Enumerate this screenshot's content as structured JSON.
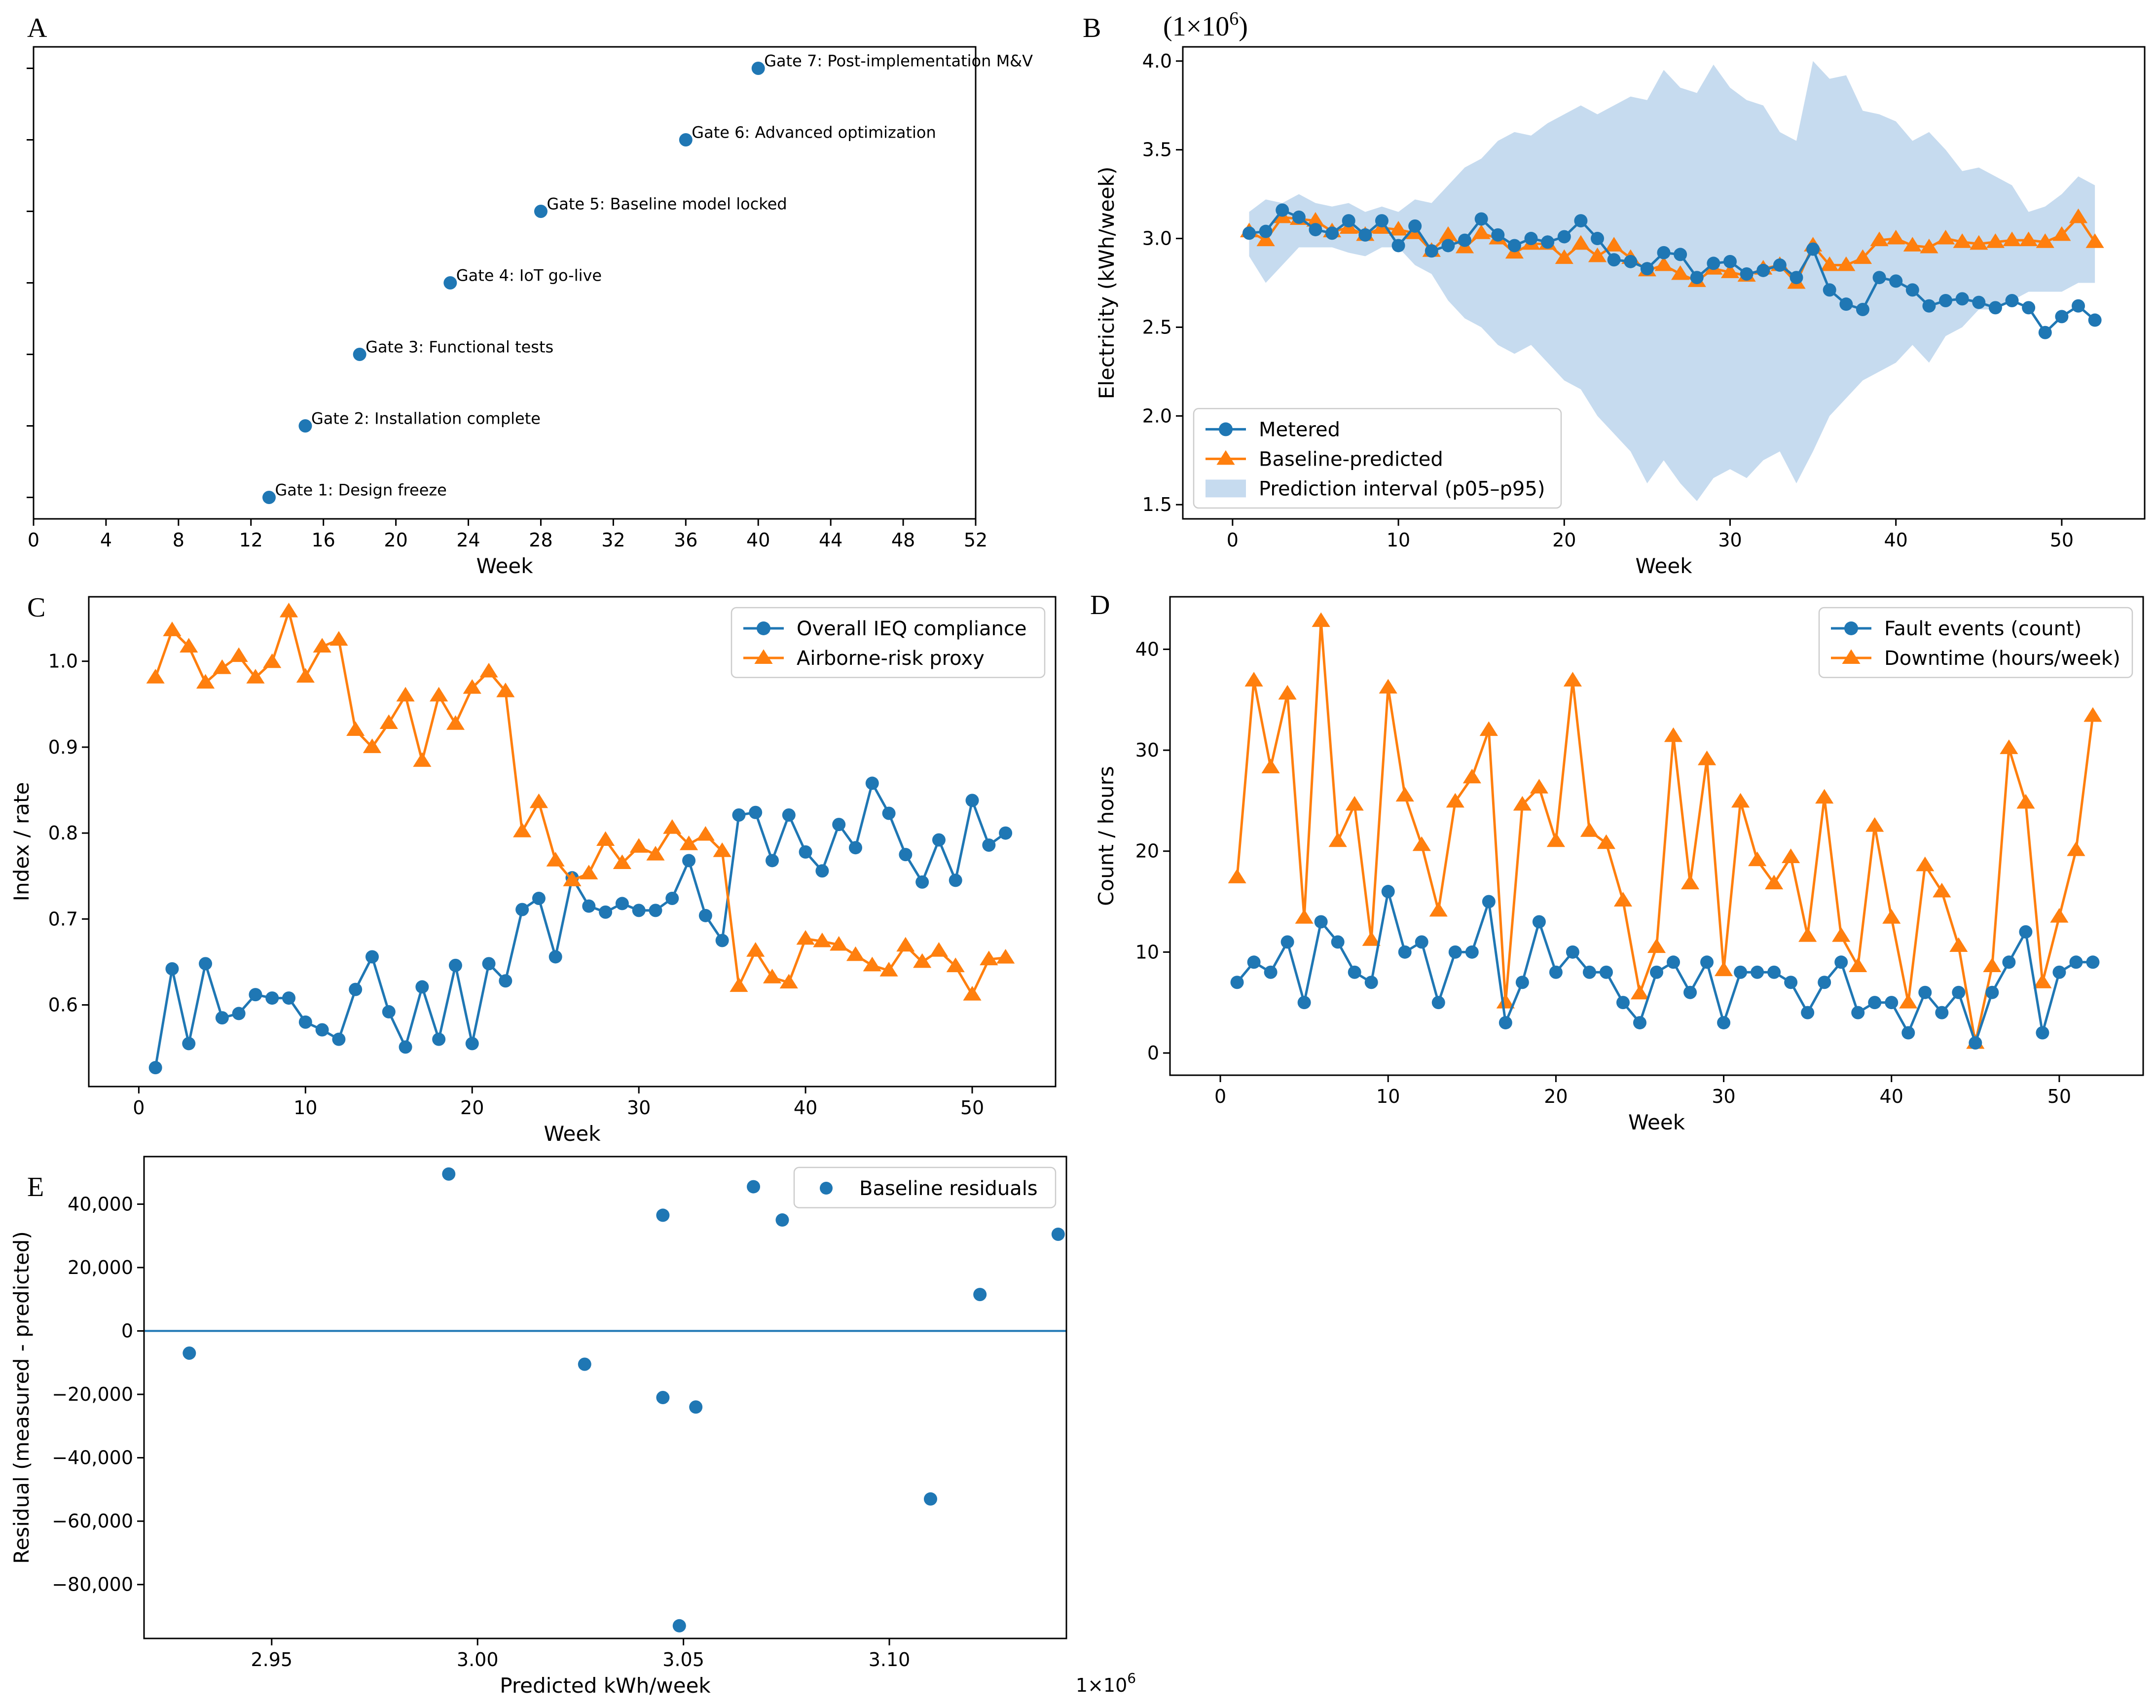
{
  "figure": {
    "panel_letters": [
      "A",
      "B",
      "C",
      "D",
      "E"
    ]
  },
  "colors": {
    "blue": "#1f77b4",
    "orange": "#ff7f0e",
    "band": "#c6dbef"
  },
  "chart_data": [
    {
      "id": "A",
      "type": "scatter",
      "title": "",
      "xlabel": "Week",
      "ylabel": "",
      "xlim": [
        0,
        52
      ],
      "xticks": [
        0,
        4,
        8,
        12,
        16,
        20,
        24,
        28,
        32,
        36,
        40,
        44,
        48,
        52
      ],
      "ylim": [
        0.7,
        7.3
      ],
      "points": [
        {
          "x": 13,
          "y": 1,
          "label": "Gate 1: Design freeze"
        },
        {
          "x": 15,
          "y": 2,
          "label": "Gate 2: Installation complete"
        },
        {
          "x": 18,
          "y": 3,
          "label": "Gate 3: Functional tests"
        },
        {
          "x": 23,
          "y": 4,
          "label": "Gate 4: IoT go-live"
        },
        {
          "x": 28,
          "y": 5,
          "label": "Gate 5: Baseline model locked"
        },
        {
          "x": 36,
          "y": 6,
          "label": "Gate 6: Advanced optimization"
        },
        {
          "x": 40,
          "y": 7,
          "label": "Gate 7: Post-implementation M&V"
        }
      ]
    },
    {
      "id": "B",
      "type": "line",
      "xlabel": "Week",
      "ylabel": "Electricity (kWh/week)",
      "scale_label": "(1×10",
      "scale_exp": "6",
      "scale_close": ")",
      "xlim": [
        -3,
        55
      ],
      "ylim": [
        1.42,
        4.08
      ],
      "xticks": [
        0,
        10,
        20,
        30,
        40,
        50
      ],
      "yticks": [
        "1.5",
        "2.0",
        "2.5",
        "3.0",
        "3.5",
        "4.0"
      ],
      "x": [
        1,
        2,
        3,
        4,
        5,
        6,
        7,
        8,
        9,
        10,
        11,
        12,
        13,
        14,
        15,
        16,
        17,
        18,
        19,
        20,
        21,
        22,
        23,
        24,
        25,
        26,
        27,
        28,
        29,
        30,
        31,
        32,
        33,
        34,
        35,
        36,
        37,
        38,
        39,
        40,
        41,
        42,
        43,
        44,
        45,
        46,
        47,
        48,
        49,
        50,
        51,
        52
      ],
      "series": [
        {
          "name": "Metered",
          "marker": "circle",
          "values": [
            3.03,
            3.04,
            3.16,
            3.12,
            3.05,
            3.03,
            3.1,
            3.02,
            3.1,
            2.96,
            3.07,
            2.93,
            2.96,
            2.99,
            3.11,
            3.02,
            2.96,
            3.0,
            2.98,
            3.01,
            3.1,
            3.0,
            2.88,
            2.87,
            2.83,
            2.92,
            2.91,
            2.78,
            2.86,
            2.87,
            2.8,
            2.82,
            2.85,
            2.78,
            2.94,
            2.71,
            2.63,
            2.6,
            2.78,
            2.76,
            2.71,
            2.62,
            2.65,
            2.66,
            2.64,
            2.61,
            2.65,
            2.61,
            2.47,
            2.56,
            2.62,
            2.54
          ]
        },
        {
          "name": "Baseline-predicted",
          "marker": "triangle",
          "values": [
            3.04,
            2.99,
            3.12,
            3.11,
            3.1,
            3.04,
            3.06,
            3.02,
            3.06,
            3.05,
            3.03,
            2.93,
            3.02,
            2.95,
            3.03,
            3.0,
            2.92,
            2.97,
            2.97,
            2.89,
            2.97,
            2.9,
            2.96,
            2.89,
            2.82,
            2.85,
            2.8,
            2.76,
            2.83,
            2.81,
            2.79,
            2.83,
            2.85,
            2.75,
            2.96,
            2.85,
            2.85,
            2.89,
            2.99,
            3.0,
            2.96,
            2.95,
            3.0,
            2.98,
            2.97,
            2.98,
            2.99,
            2.99,
            2.98,
            3.02,
            3.12,
            2.98
          ]
        },
        {
          "name": "Prediction interval (p05–p95)",
          "type": "band",
          "lower": [
            2.9,
            2.75,
            2.85,
            2.95,
            2.95,
            2.95,
            2.92,
            2.9,
            2.95,
            2.95,
            2.85,
            2.8,
            2.65,
            2.55,
            2.5,
            2.4,
            2.35,
            2.4,
            2.3,
            2.2,
            2.15,
            2.0,
            1.9,
            1.8,
            1.62,
            1.75,
            1.62,
            1.52,
            1.65,
            1.7,
            1.65,
            1.75,
            1.8,
            1.62,
            1.8,
            2.0,
            2.1,
            2.2,
            2.25,
            2.3,
            2.4,
            2.3,
            2.45,
            2.5,
            2.6,
            2.6,
            2.65,
            2.7,
            2.7,
            2.7,
            2.75,
            2.75
          ],
          "upper": [
            3.15,
            3.22,
            3.2,
            3.25,
            3.2,
            3.18,
            3.2,
            3.15,
            3.18,
            3.15,
            3.22,
            3.2,
            3.3,
            3.4,
            3.45,
            3.55,
            3.6,
            3.58,
            3.65,
            3.7,
            3.75,
            3.7,
            3.75,
            3.8,
            3.78,
            3.95,
            3.85,
            3.82,
            3.98,
            3.85,
            3.78,
            3.75,
            3.6,
            3.55,
            4.0,
            3.9,
            3.92,
            3.72,
            3.7,
            3.66,
            3.55,
            3.6,
            3.5,
            3.38,
            3.4,
            3.35,
            3.3,
            3.15,
            3.18,
            3.25,
            3.35,
            3.3
          ]
        }
      ],
      "legend": "lower-left"
    },
    {
      "id": "C",
      "type": "line",
      "xlabel": "Week",
      "ylabel": "Index / rate",
      "xlim": [
        -3,
        55
      ],
      "ylim": [
        0.505,
        1.075
      ],
      "xticks": [
        0,
        10,
        20,
        30,
        40,
        50
      ],
      "yticks": [
        "0.6",
        "0.7",
        "0.8",
        "0.9",
        "1.0"
      ],
      "x": [
        1,
        2,
        3,
        4,
        5,
        6,
        7,
        8,
        9,
        10,
        11,
        12,
        13,
        14,
        15,
        16,
        17,
        18,
        19,
        20,
        21,
        22,
        23,
        24,
        25,
        26,
        27,
        28,
        29,
        30,
        31,
        32,
        33,
        34,
        35,
        36,
        37,
        38,
        39,
        40,
        41,
        42,
        43,
        44,
        45,
        46,
        47,
        48,
        49,
        50,
        51,
        52
      ],
      "series": [
        {
          "name": "Overall IEQ compliance",
          "marker": "circle",
          "values": [
            0.527,
            0.642,
            0.555,
            0.648,
            0.585,
            0.59,
            0.612,
            0.608,
            0.608,
            0.58,
            0.571,
            0.56,
            0.618,
            0.656,
            0.592,
            0.551,
            0.621,
            0.56,
            0.646,
            0.555,
            0.648,
            0.628,
            0.711,
            0.724,
            0.656,
            0.748,
            0.715,
            0.708,
            0.718,
            0.71,
            0.71,
            0.724,
            0.768,
            0.704,
            0.675,
            0.821,
            0.824,
            0.768,
            0.821,
            0.778,
            0.756,
            0.81,
            0.783,
            0.858,
            0.823,
            0.775,
            0.743,
            0.792,
            0.745,
            0.838,
            0.786,
            0.8
          ]
        },
        {
          "name": "Airborne-risk proxy",
          "marker": "triangle",
          "values": [
            0.981,
            1.036,
            1.017,
            0.975,
            0.992,
            1.006,
            0.981,
            0.999,
            1.058,
            0.982,
            1.017,
            1.025,
            0.92,
            0.9,
            0.928,
            0.96,
            0.884,
            0.96,
            0.927,
            0.969,
            0.988,
            0.965,
            0.802,
            0.836,
            0.768,
            0.745,
            0.753,
            0.792,
            0.765,
            0.784,
            0.775,
            0.806,
            0.787,
            0.798,
            0.779,
            0.622,
            0.663,
            0.632,
            0.626,
            0.677,
            0.674,
            0.67,
            0.658,
            0.646,
            0.64,
            0.669,
            0.65,
            0.663,
            0.645,
            0.612,
            0.653,
            0.655
          ]
        }
      ],
      "legend": "upper-right"
    },
    {
      "id": "D",
      "type": "line",
      "xlabel": "Week",
      "ylabel": "Count / hours",
      "xlim": [
        -3,
        55
      ],
      "ylim": [
        -2.2,
        45.2
      ],
      "xticks": [
        0,
        10,
        20,
        30,
        40,
        50
      ],
      "yticks": [
        "0",
        "10",
        "20",
        "30",
        "40"
      ],
      "x": [
        1,
        2,
        3,
        4,
        5,
        6,
        7,
        8,
        9,
        10,
        11,
        12,
        13,
        14,
        15,
        16,
        17,
        18,
        19,
        20,
        21,
        22,
        23,
        24,
        25,
        26,
        27,
        28,
        29,
        30,
        31,
        32,
        33,
        34,
        35,
        36,
        37,
        38,
        39,
        40,
        41,
        42,
        43,
        44,
        45,
        46,
        47,
        48,
        49,
        50,
        51,
        52
      ],
      "series": [
        {
          "name": "Fault events (count)",
          "marker": "circle",
          "values": [
            7,
            9,
            8,
            11,
            5,
            13,
            11,
            8,
            7,
            16,
            10,
            11,
            5,
            10,
            10,
            15,
            3,
            7,
            13,
            8,
            10,
            8,
            8,
            5,
            3,
            8,
            9,
            6,
            9,
            3,
            8,
            8,
            8,
            7,
            4,
            7,
            9,
            4,
            5,
            5,
            2,
            6,
            4,
            6,
            1,
            6,
            9,
            12,
            2,
            8,
            9,
            9
          ]
        },
        {
          "name": "Downtime (hours/week)",
          "marker": "triangle",
          "values": [
            17.4,
            36.9,
            28.3,
            35.6,
            13.4,
            42.8,
            21.0,
            24.6,
            11.2,
            36.2,
            25.5,
            20.6,
            14.1,
            24.9,
            27.3,
            32.0,
            5.0,
            24.6,
            26.3,
            21.0,
            36.9,
            22.0,
            20.8,
            15.1,
            5.9,
            10.5,
            31.4,
            16.8,
            29.1,
            8.2,
            24.9,
            19.1,
            16.8,
            19.4,
            11.6,
            25.3,
            11.6,
            8.6,
            22.5,
            13.4,
            5.0,
            18.6,
            16.0,
            10.6,
            1.0,
            8.6,
            30.2,
            24.8,
            7.0,
            13.5,
            20.1,
            33.4
          ]
        }
      ],
      "legend": "upper-right"
    },
    {
      "id": "E",
      "type": "scatter",
      "xlabel": "Predicted kWh/week",
      "ylabel": "Residual (measured - predicted)",
      "scale_label": "1×10",
      "scale_exp": "6",
      "xlim": [
        2.919,
        3.143
      ],
      "ylim": [
        -97000,
        55000
      ],
      "xticks": [
        "2.95",
        "3.00",
        "3.05",
        "3.10"
      ],
      "yticks": [
        "−80,000",
        "−60,000",
        "−40,000",
        "−20,000",
        "0",
        "20,000",
        "40,000"
      ],
      "hline": 0,
      "series": [
        {
          "name": "Baseline residuals",
          "x": [
            2.93,
            2.993,
            3.026,
            3.045,
            3.045,
            3.049,
            3.053,
            3.067,
            3.074,
            3.11,
            3.122,
            3.141
          ],
          "y": [
            -7000,
            49500,
            -10500,
            36500,
            -21000,
            -93000,
            -24000,
            45500,
            35000,
            -53000,
            11500,
            30500
          ]
        }
      ],
      "legend": "upper-right"
    }
  ]
}
